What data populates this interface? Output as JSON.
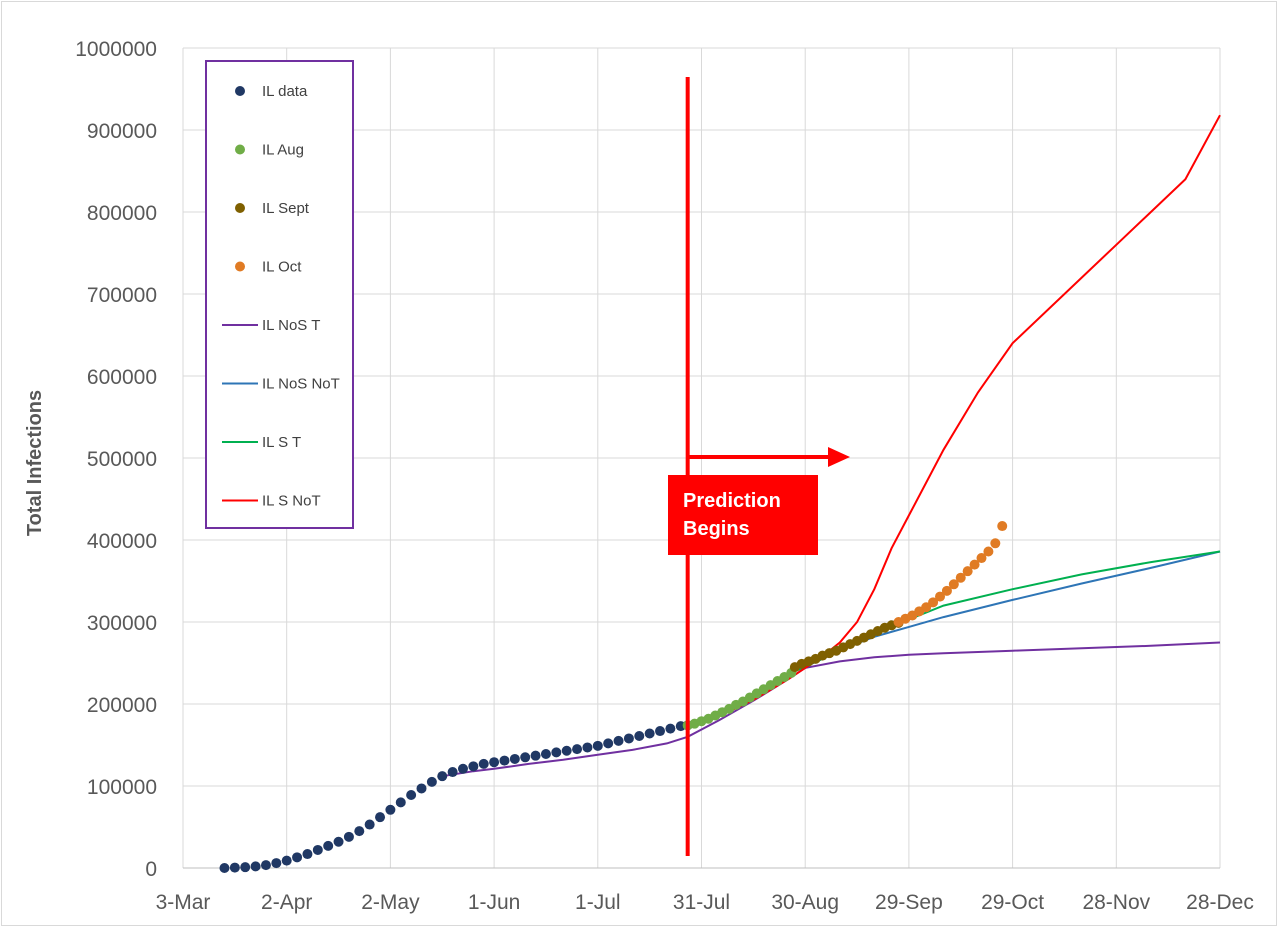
{
  "chart_data": {
    "type": "line",
    "ylabel": "Total Infections",
    "xlabel": "",
    "ylim": [
      0,
      1000000
    ],
    "y_ticks": [
      "0",
      "100000",
      "200000",
      "300000",
      "400000",
      "500000",
      "600000",
      "700000",
      "800000",
      "900000",
      "1000000"
    ],
    "x_ticks": [
      "3-Mar",
      "2-Apr",
      "2-May",
      "1-Jun",
      "1-Jul",
      "31-Jul",
      "30-Aug",
      "29-Sep",
      "29-Oct",
      "28-Nov",
      "28-Dec"
    ],
    "x_range_days": [
      0,
      300
    ],
    "grid": true,
    "legend_placement": "top-left",
    "annotation": {
      "prediction_day": 146,
      "label_line1": "Prediction",
      "label_line2": "Begins",
      "color": "#ff0000"
    },
    "series": [
      {
        "name": "IL data",
        "kind": "points",
        "color": "#203864",
        "x": [
          12,
          15,
          18,
          21,
          24,
          27,
          30,
          33,
          36,
          39,
          42,
          45,
          48,
          51,
          54,
          57,
          60,
          63,
          66,
          69,
          72,
          75,
          78,
          81,
          84,
          87,
          90,
          93,
          96,
          99,
          102,
          105,
          108,
          111,
          114,
          117,
          120,
          123,
          126,
          129,
          132,
          135,
          138,
          141,
          144,
          146
        ],
        "y": [
          0,
          500,
          1000,
          2000,
          3500,
          6000,
          9000,
          13000,
          17000,
          22000,
          27000,
          32000,
          38000,
          45000,
          53000,
          62000,
          71000,
          80000,
          89000,
          97000,
          105000,
          112000,
          117000,
          121000,
          124000,
          127000,
          129000,
          131000,
          133000,
          135000,
          137000,
          139000,
          141000,
          143000,
          145000,
          147000,
          149000,
          152000,
          155000,
          158000,
          161000,
          164000,
          167000,
          170000,
          173000,
          174000
        ]
      },
      {
        "name": "IL Aug",
        "kind": "points",
        "color": "#70ad47",
        "x": [
          146,
          148,
          150,
          152,
          154,
          156,
          158,
          160,
          162,
          164,
          166,
          168,
          170,
          172,
          174,
          176
        ],
        "y": [
          174000,
          176000,
          179000,
          182000,
          186000,
          190000,
          194000,
          199000,
          203000,
          208000,
          213000,
          218000,
          223000,
          228000,
          233000,
          238000
        ]
      },
      {
        "name": "IL Sept",
        "kind": "points",
        "color": "#7f6000",
        "x": [
          177,
          179,
          181,
          183,
          185,
          187,
          189,
          191,
          193,
          195,
          197,
          199,
          201,
          203,
          205,
          207
        ],
        "y": [
          245000,
          249000,
          252000,
          255000,
          259000,
          262000,
          265000,
          269000,
          273000,
          277000,
          281000,
          285000,
          289000,
          293000,
          296000,
          299000
        ]
      },
      {
        "name": "IL Oct",
        "kind": "points",
        "color": "#e07b24",
        "x": [
          207,
          209,
          211,
          213,
          215,
          217,
          219,
          221,
          223,
          225,
          227,
          229,
          231,
          233,
          235,
          237
        ],
        "y": [
          300000,
          304000,
          308000,
          313000,
          318000,
          324000,
          331000,
          338000,
          346000,
          354000,
          362000,
          370000,
          378000,
          386000,
          396000,
          417000
        ]
      },
      {
        "name": "IL NoS T",
        "kind": "line",
        "color": "#7030a0",
        "x": [
          75,
          84,
          90,
          100,
          110,
          120,
          130,
          140,
          146,
          155,
          165,
          175,
          180,
          190,
          200,
          210,
          220,
          240,
          260,
          280,
          300
        ],
        "y": [
          112000,
          118000,
          121000,
          127000,
          132000,
          138000,
          144000,
          152000,
          160000,
          180000,
          204000,
          230000,
          244000,
          252000,
          257000,
          260000,
          262000,
          265000,
          268000,
          271000,
          275000
        ]
      },
      {
        "name": "IL NoS NoT",
        "kind": "line",
        "color": "#2e75b6",
        "x": [
          176,
          185,
          190,
          200,
          210,
          220,
          240,
          260,
          280,
          300
        ],
        "y": [
          238000,
          255000,
          266000,
          282000,
          294000,
          306000,
          327000,
          347000,
          366000,
          386000
        ]
      },
      {
        "name": "IL S T",
        "kind": "line",
        "color": "#00b050",
        "x": [
          176,
          185,
          190,
          200,
          210,
          220,
          240,
          260,
          280,
          300
        ],
        "y": [
          238000,
          255000,
          267000,
          286000,
          303000,
          320000,
          340000,
          358000,
          373000,
          386000
        ]
      },
      {
        "name": "IL S NoT",
        "kind": "line",
        "color": "#ff0000",
        "x": [
          146,
          155,
          165,
          175,
          185,
          190,
          195,
          200,
          205,
          210,
          220,
          230,
          240,
          260,
          270,
          280,
          290,
          300
        ],
        "y": [
          174000,
          185000,
          205000,
          230000,
          258000,
          275000,
          300000,
          340000,
          390000,
          430000,
          510000,
          580000,
          640000,
          720000,
          760000,
          800000,
          840000,
          918000
        ]
      }
    ]
  }
}
